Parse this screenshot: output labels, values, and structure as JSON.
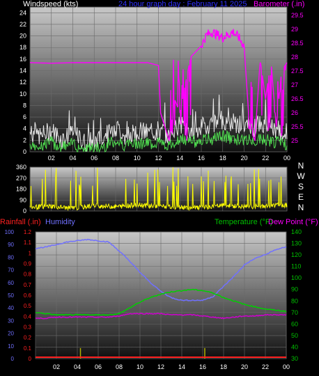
{
  "colors": {
    "windspeed_bright": "#e8e8e8",
    "windspeed_gust": "#50e050",
    "barometer": "#ff00ff",
    "direction": "#ffff00",
    "humidity": "#7070ff",
    "temperature": "#00d000",
    "dewpoint": "#d000d0",
    "rainfall": "#ff2020",
    "rain_bars": "#b0b000",
    "axis_left_text": "#ffffff",
    "title_text": "#3030ff",
    "barometer_text": "#ff00ff",
    "temperature_text": "#00c000",
    "dewpoint_text": "#ff00ff",
    "rainfall_text": "#ff2020",
    "humidity_text": "#7070ff"
  },
  "chart_data": [
    {
      "type": "line",
      "title": "24 hour graph day : February 11 2025",
      "left_axis_label": "Windspeed (kts)",
      "right_axis_label": "Barometer (.in)",
      "x_ticks": [
        "02",
        "04",
        "06",
        "08",
        "10",
        "12",
        "14",
        "16",
        "18",
        "20",
        "22",
        "00"
      ],
      "y_left_ticks": [
        "0",
        "2",
        "4",
        "6",
        "8",
        "10",
        "12",
        "14",
        "16",
        "18",
        "20",
        "22",
        "24"
      ],
      "y_right_ticks": [
        "25",
        "25.5",
        "26",
        "26.5",
        "27",
        "27.5",
        "28",
        "28.5",
        "29",
        "29.5"
      ],
      "ylim_left": [
        0,
        25
      ],
      "ylim_right": [
        24.6,
        29.8
      ],
      "grid": true,
      "series": [
        {
          "name": "Windspeed (kts)",
          "axis": "left",
          "x": [
            0,
            1,
            2,
            3,
            4,
            5,
            6,
            7,
            8,
            9,
            10,
            11,
            12,
            13,
            14,
            15,
            16,
            17,
            18,
            19,
            20,
            21,
            22,
            23,
            24
          ],
          "values": [
            2.5,
            2,
            3,
            1.5,
            2.5,
            1,
            1,
            2,
            3.5,
            2,
            3,
            2.5,
            3,
            2,
            4,
            3,
            3.5,
            4,
            5,
            4,
            4,
            3.5,
            4,
            3,
            2.5
          ]
        },
        {
          "name": "Barometer (.in)",
          "axis": "right",
          "x": [
            0,
            2,
            4,
            6,
            8,
            10,
            11,
            12,
            12.2,
            13,
            13.5,
            14,
            15,
            16,
            16.5,
            17,
            18,
            19,
            19.5,
            20,
            20.5,
            21,
            21.5,
            22,
            22.5,
            23,
            23.5,
            24
          ],
          "values": [
            27.8,
            27.78,
            27.8,
            27.8,
            27.8,
            27.8,
            27.8,
            27.7,
            26.0,
            25.0,
            26.5,
            26.0,
            28.0,
            28.4,
            28.8,
            28.9,
            28.7,
            28.9,
            28.7,
            28.4,
            25.5,
            25.0,
            27.9,
            26.5,
            27.9,
            25.5,
            27.5,
            27.8
          ]
        }
      ]
    },
    {
      "type": "scatter",
      "left_axis_label": "",
      "right_axis_labels": [
        "N",
        "W",
        "S",
        "E",
        "N"
      ],
      "y_ticks": [
        "0",
        "90",
        "180",
        "270",
        "360"
      ],
      "ylim": [
        0,
        360
      ],
      "grid": true,
      "series": [
        {
          "name": "Wind direction",
          "x": [
            0,
            2,
            4,
            6,
            8,
            10,
            12,
            14,
            16,
            18,
            20,
            22,
            24
          ],
          "values": [
            30,
            40,
            20,
            45,
            35,
            50,
            40,
            30,
            25,
            45,
            35,
            40,
            50
          ]
        }
      ]
    },
    {
      "type": "line",
      "left_axis_label_rain": "Rainfall (.in)",
      "left_axis_label_humidity": "Humidity",
      "right_axis_label_temp": "Temperature (°F)",
      "right_axis_label_dew": "Dew Point (°F)",
      "x_ticks": [
        "02",
        "04",
        "06",
        "08",
        "10",
        "12",
        "14",
        "16",
        "18",
        "20",
        "22",
        "00"
      ],
      "y_rain_ticks": [
        "0",
        "0.1",
        "0.2",
        "0.3",
        "0.4",
        "0.5",
        "0.6",
        "0.7",
        "0.8",
        "0.9",
        "1",
        "1.1",
        "1.2"
      ],
      "y_humidity_ticks": [
        "0",
        "10",
        "20",
        "30",
        "40",
        "50",
        "60",
        "70",
        "80",
        "90",
        "100"
      ],
      "y_temp_ticks": [
        "30",
        "40",
        "50",
        "60",
        "70",
        "80",
        "90",
        "100",
        "110",
        "120",
        "130",
        "140"
      ],
      "ylim_humidity": [
        0,
        100
      ],
      "ylim_temp": [
        30,
        140
      ],
      "grid": true,
      "series": [
        {
          "name": "Humidity",
          "axis": "humidity",
          "x": [
            0,
            1,
            2,
            3,
            4,
            5,
            6,
            7,
            8,
            9,
            10,
            11,
            12,
            13,
            14,
            15,
            16,
            17,
            18,
            19,
            20,
            21,
            22,
            23,
            24
          ],
          "values": [
            87,
            88,
            90,
            92,
            93,
            94,
            93,
            92,
            85,
            77,
            68,
            60,
            53,
            48,
            46,
            46,
            46,
            49,
            57,
            65,
            74,
            79,
            82,
            86,
            88
          ]
        },
        {
          "name": "Temperature (°F)",
          "axis": "temp",
          "x": [
            0,
            1,
            2,
            3,
            4,
            5,
            6,
            7,
            8,
            9,
            10,
            11,
            12,
            13,
            14,
            15,
            16,
            17,
            18,
            19,
            20,
            21,
            22,
            23,
            24
          ],
          "values": [
            70,
            69,
            68,
            68,
            68,
            68,
            68,
            68,
            69,
            74,
            79,
            83,
            86,
            88,
            89,
            90,
            89,
            87,
            83,
            80,
            77,
            75,
            73,
            72,
            71
          ]
        },
        {
          "name": "Dew Point (°F)",
          "axis": "temp",
          "x": [
            0,
            1,
            2,
            3,
            4,
            5,
            6,
            7,
            8,
            9,
            10,
            11,
            12,
            13,
            14,
            15,
            16,
            17,
            18,
            19,
            20,
            21,
            22,
            23,
            24
          ],
          "values": [
            65,
            65,
            66,
            66,
            66,
            66,
            66,
            66,
            67,
            69,
            69,
            69,
            69,
            68,
            68,
            68,
            67,
            66,
            65,
            66,
            67,
            67,
            68,
            68,
            68
          ]
        },
        {
          "name": "Rainfall (.in)",
          "axis": "rain",
          "type": "bar",
          "x": [
            4.3,
            16.2
          ],
          "values": [
            0.1,
            0.1
          ]
        }
      ]
    }
  ]
}
